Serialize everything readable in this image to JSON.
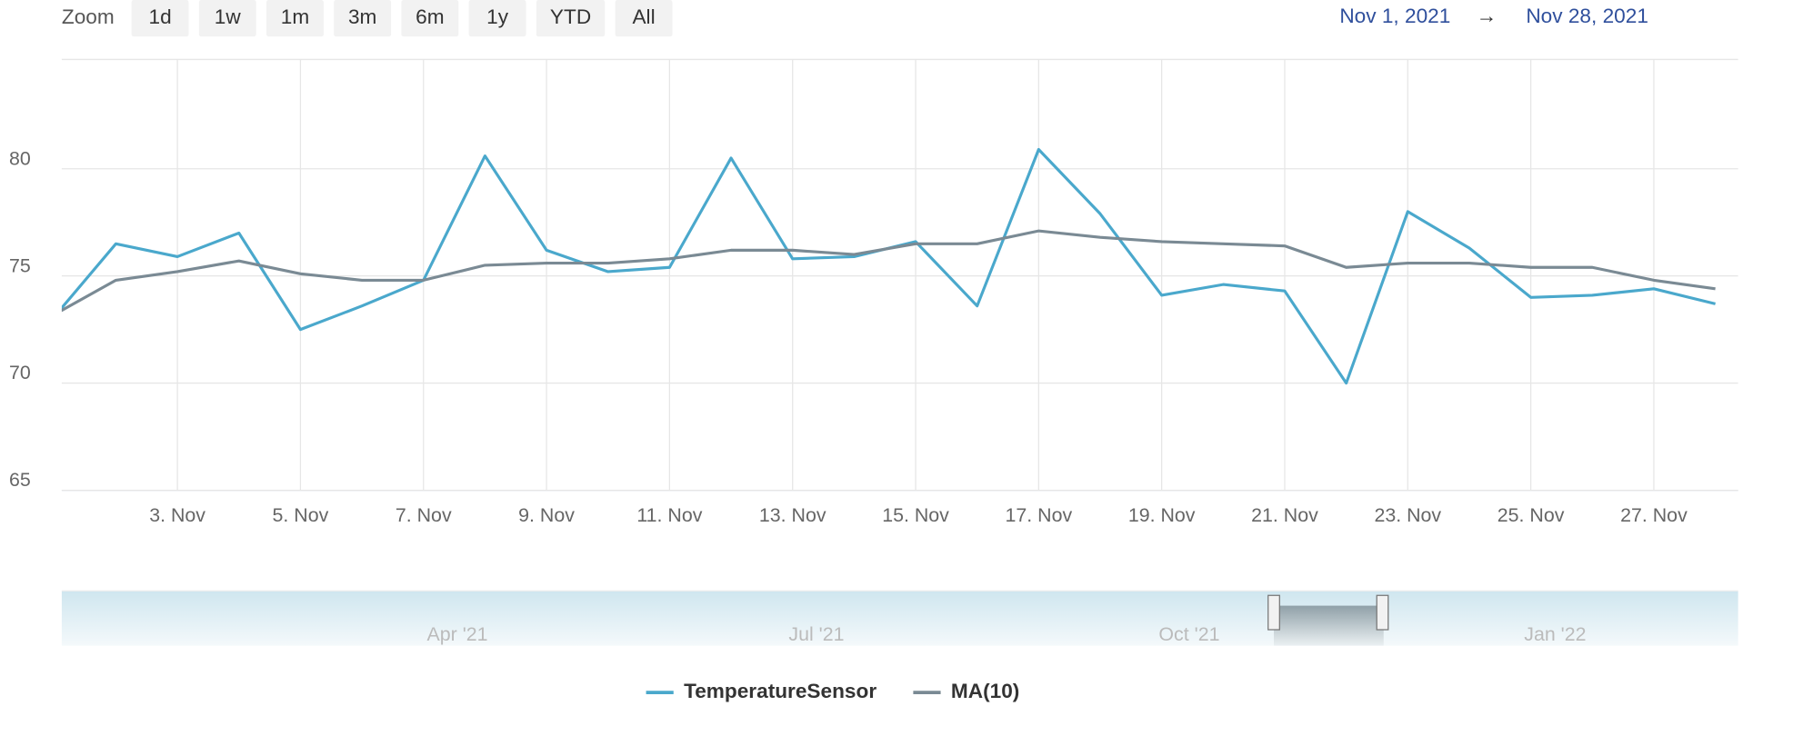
{
  "range_selector": {
    "zoom_label": "Zoom",
    "buttons": [
      "1d",
      "1w",
      "1m",
      "3m",
      "6m",
      "1y",
      "YTD",
      "All"
    ],
    "from": "Nov 1, 2021",
    "arrow": "→",
    "to": "Nov 28, 2021"
  },
  "chart_data": {
    "type": "line",
    "x": [
      1,
      2,
      3,
      4,
      5,
      6,
      7,
      8,
      9,
      10,
      11,
      12,
      13,
      14,
      15,
      16,
      17,
      18,
      19,
      20,
      21,
      22,
      23,
      24,
      25,
      26,
      27,
      28
    ],
    "series": [
      {
        "name": "TemperatureSensor",
        "color": "#4aa8cc",
        "values": [
          73.1,
          76.5,
          75.9,
          77.0,
          72.5,
          73.6,
          74.8,
          80.6,
          76.2,
          75.2,
          75.4,
          80.5,
          75.8,
          75.9,
          76.6,
          73.6,
          80.9,
          77.9,
          74.1,
          74.6,
          74.3,
          70.0,
          78.0,
          76.3,
          74.0,
          74.1,
          74.4,
          73.7
        ]
      },
      {
        "name": "MA(10)",
        "color": "#7a8a94",
        "values": [
          73.2,
          74.8,
          75.2,
          75.7,
          75.1,
          74.8,
          74.8,
          75.5,
          75.6,
          75.6,
          75.8,
          76.2,
          76.2,
          76.0,
          76.5,
          76.5,
          77.1,
          76.8,
          76.6,
          76.5,
          76.4,
          75.4,
          75.6,
          75.6,
          75.4,
          75.4,
          74.8,
          74.4
        ]
      }
    ],
    "xlim": [
      1.12,
      28.37
    ],
    "xticks": [
      {
        "value": 3,
        "label": "3. Nov"
      },
      {
        "value": 5,
        "label": "5. Nov"
      },
      {
        "value": 7,
        "label": "7. Nov"
      },
      {
        "value": 9,
        "label": "9. Nov"
      },
      {
        "value": 11,
        "label": "11. Nov"
      },
      {
        "value": 13,
        "label": "13. Nov"
      },
      {
        "value": 15,
        "label": "15. Nov"
      },
      {
        "value": 17,
        "label": "17. Nov"
      },
      {
        "value": 19,
        "label": "19. Nov"
      },
      {
        "value": 21,
        "label": "21. Nov"
      },
      {
        "value": 23,
        "label": "23. Nov"
      },
      {
        "value": 25,
        "label": "25. Nov"
      },
      {
        "value": 27,
        "label": "27. Nov"
      }
    ],
    "ylim": [
      65,
      85.1
    ],
    "yticks": [
      65,
      70,
      75,
      80
    ],
    "grid": true
  },
  "navigator": {
    "labels": [
      "Apr '21",
      "Jul '21",
      "Oct '21",
      "Jan '22"
    ]
  }
}
